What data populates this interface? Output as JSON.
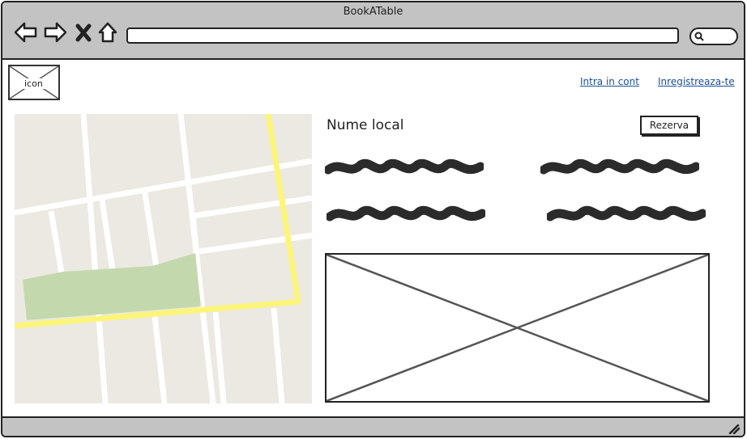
{
  "window": {
    "title": "BookATable"
  },
  "toolbar": {
    "icons": [
      "back-arrow-icon",
      "forward-arrow-icon",
      "close-icon",
      "home-icon"
    ],
    "url_value": "",
    "search_value": ""
  },
  "header": {
    "logo_label": "icon",
    "login_label": "Intra in cont",
    "register_label": "Inregistreaza-te"
  },
  "main": {
    "venue_name": "Nume local",
    "reserve_label": "Rezerva"
  },
  "colors": {
    "chrome": "#c3c3c3",
    "link": "#1a4f9c",
    "map_bg": "#ebe9e1",
    "map_road_major": "#fcf57a",
    "map_park": "#c3d9ad"
  }
}
